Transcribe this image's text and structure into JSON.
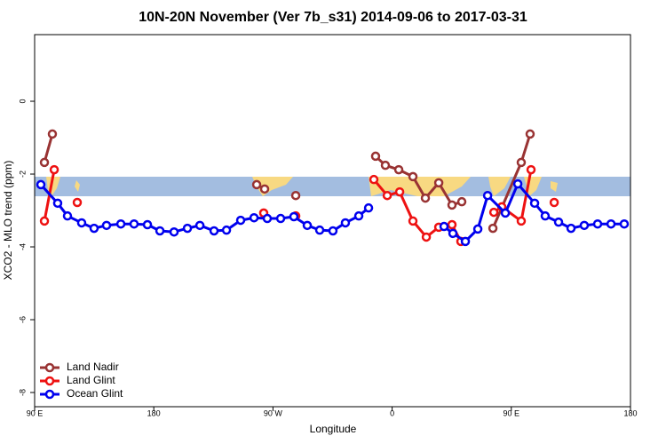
{
  "chart_data": {
    "type": "line",
    "title": "10N-20N November (Ver 7b_s31)   2014-09-06 to 2017-03-31",
    "xlabel": "Longitude",
    "ylabel": "XCO2 - MLO trend (ppm)",
    "xlim": [
      90,
      540
    ],
    "ylim": [
      -8.39,
      1.83
    ],
    "xticks": [
      {
        "value": 90,
        "label": "90 E"
      },
      180,
      {
        "value": 270,
        "label": "90 W"
      },
      {
        "value": 360,
        "label": "0"
      },
      {
        "value": 450,
        "label": "90 E"
      },
      {
        "value": 540,
        "label": "180"
      }
    ],
    "yticks": [
      0,
      -2,
      -4,
      -6,
      -8
    ],
    "legend": "bottom-left",
    "series": [
      {
        "name": "Land Nadir",
        "color": "#993333",
        "x": [
          97.4,
          103.4,
          null,
          257.7,
          263.7,
          null,
          287.2,
          null,
          347.5,
          354.9,
          365,
          375.7,
          385.1,
          395.2,
          405.2,
          412.6,
          null,
          436.1,
          457.5,
          464.2
        ],
        "values": [
          -1.68,
          -0.9,
          null,
          -2.29,
          -2.41,
          null,
          -2.59,
          null,
          -1.51,
          -1.76,
          -1.88,
          -2.07,
          -2.66,
          -2.24,
          -2.85,
          -2.76,
          null,
          -3.49,
          -1.68,
          -0.9
        ]
      },
      {
        "name": "Land Glint",
        "color": "#ee1111",
        "x": [
          97.4,
          104.8,
          null,
          122.2,
          null,
          263,
          null,
          287.2,
          null,
          346.2,
          356.3,
          365.7,
          375.7,
          385.8,
          395.2,
          405.2,
          411.9,
          null,
          436.8,
          442.8,
          457.5,
          464.9,
          null,
          482.4
        ],
        "values": [
          -3.29,
          -1.88,
          null,
          -2.78,
          null,
          -3.07,
          null,
          -3.15,
          null,
          -2.15,
          -2.59,
          -2.49,
          -3.29,
          -3.73,
          -3.46,
          -3.39,
          -3.85,
          null,
          -3.05,
          -2.9,
          -3.29,
          -1.88,
          null,
          -2.78
        ]
      },
      {
        "name": "Ocean Glint",
        "color": "#0000ee",
        "x": [
          94.7,
          107.4,
          114.8,
          125.5,
          134.9,
          144.3,
          155.1,
          165.1,
          175.2,
          184.6,
          195.3,
          205.4,
          214.8,
          225.5,
          234.9,
          245.6,
          255.7,
          265.7,
          275.8,
          285.8,
          295.9,
          305.3,
          315.3,
          324.7,
          334.8,
          342.2,
          null,
          399.2,
          405.9,
          415.3,
          424.7,
          432.1,
          445.5,
          454.9,
          467.6,
          475.6,
          485.7,
          495.1,
          505.1,
          515.2,
          525.3,
          535.3
        ],
        "values": [
          -2.29,
          -2.8,
          -3.15,
          -3.34,
          -3.49,
          -3.41,
          -3.37,
          -3.37,
          -3.39,
          -3.56,
          -3.59,
          -3.49,
          -3.41,
          -3.56,
          -3.54,
          -3.27,
          -3.2,
          -3.22,
          -3.22,
          -3.17,
          -3.41,
          -3.54,
          -3.56,
          -3.34,
          -3.15,
          -2.93,
          null,
          -3.44,
          -3.63,
          -3.85,
          -3.51,
          -2.59,
          -3.07,
          -2.27,
          -2.8,
          -3.15,
          -3.32,
          -3.49,
          -3.41,
          -3.37,
          -3.37,
          -3.37
        ]
      }
    ]
  }
}
